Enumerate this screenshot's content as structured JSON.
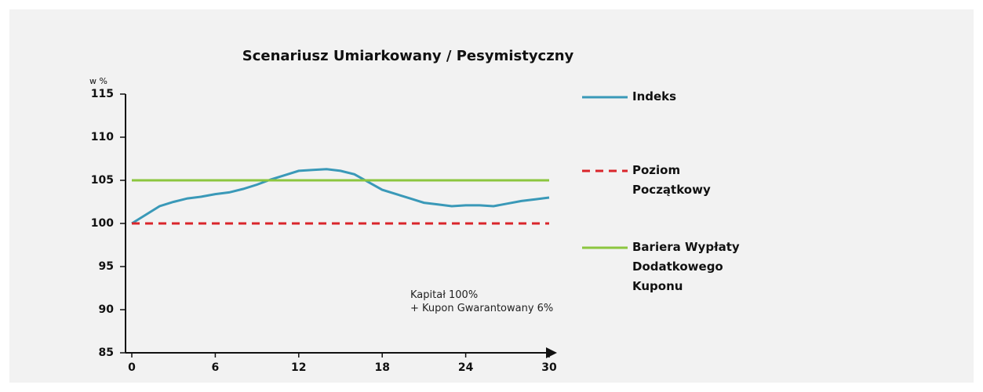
{
  "chart_data": {
    "type": "line",
    "title": "Scenariusz  Umiarkowany / Pesymistyczny",
    "ylabel": "w %",
    "annotations": [
      "Kapitał 100%",
      "+ Kupon Gwarantowany 6%"
    ],
    "xlim": [
      0,
      30
    ],
    "xticks": [
      0,
      6,
      12,
      18,
      24,
      30
    ],
    "ylim": [
      85,
      115
    ],
    "yticks": [
      85,
      90,
      95,
      100,
      105,
      110,
      115
    ],
    "series": [
      {
        "name": "Indeks",
        "color": "#3a99b8",
        "dash": false,
        "x": [
          0,
          1,
          2,
          3,
          4,
          5,
          6,
          7,
          8,
          9,
          10,
          11,
          12,
          13,
          14,
          15,
          16,
          17,
          18,
          19,
          20,
          21,
          22,
          23,
          24,
          25,
          26,
          27,
          28,
          29,
          30
        ],
        "values": [
          100,
          101,
          102,
          102.5,
          102.9,
          103.1,
          103.4,
          103.6,
          104,
          104.5,
          105.1,
          105.6,
          106.1,
          106.2,
          106.3,
          106.1,
          105.7,
          104.8,
          103.9,
          103.4,
          102.9,
          102.4,
          102.2,
          102,
          102.1,
          102.1,
          102,
          102.3,
          102.6,
          102.8,
          103
        ]
      },
      {
        "name": "Poziom Początkowy",
        "color": "#d9252b",
        "dash": true,
        "x": [
          0,
          30
        ],
        "values": [
          100,
          100
        ]
      },
      {
        "name": "Bariera Wypłaty Dodatkowego Kuponu",
        "color": "#8cc63f",
        "dash": false,
        "x": [
          0,
          30
        ],
        "values": [
          105,
          105
        ]
      }
    ]
  }
}
